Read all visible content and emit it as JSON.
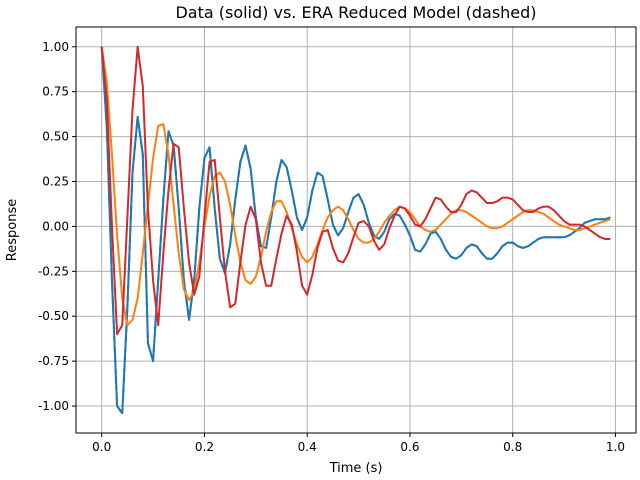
{
  "chart_data": {
    "type": "line",
    "title": "Data (solid) vs. ERA Reduced Model (dashed)",
    "xlabel": "Time (s)",
    "ylabel": "Response",
    "xlim": [
      -0.05,
      1.04
    ],
    "ylim": [
      -1.15,
      1.11
    ],
    "xticks": [
      0.0,
      0.2,
      0.4,
      0.6,
      0.8,
      1.0
    ],
    "yticks": [
      -1.0,
      -0.75,
      -0.5,
      -0.25,
      0.0,
      0.25,
      0.5,
      0.75,
      1.0
    ],
    "grid": true,
    "legend": "none",
    "series": [
      {
        "color": "#1f77b4",
        "x": [
          0.0,
          0.01,
          0.02,
          0.03,
          0.04,
          0.05,
          0.06,
          0.07,
          0.08,
          0.09,
          0.1,
          0.11,
          0.12,
          0.13,
          0.14,
          0.15,
          0.16,
          0.17,
          0.18,
          0.19,
          0.2,
          0.21,
          0.22,
          0.23,
          0.24,
          0.25,
          0.26,
          0.27,
          0.28,
          0.29,
          0.3,
          0.31,
          0.32,
          0.33,
          0.34,
          0.35,
          0.36,
          0.37,
          0.38,
          0.39,
          0.4,
          0.41,
          0.42,
          0.43,
          0.44,
          0.45,
          0.46,
          0.47,
          0.48,
          0.49,
          0.5,
          0.51,
          0.52,
          0.53,
          0.54,
          0.55,
          0.56,
          0.57,
          0.58,
          0.59,
          0.6,
          0.61,
          0.62,
          0.63,
          0.64,
          0.65,
          0.66,
          0.67,
          0.68,
          0.69,
          0.7,
          0.71,
          0.72,
          0.73,
          0.74,
          0.75,
          0.76,
          0.77,
          0.78,
          0.79,
          0.8,
          0.81,
          0.82,
          0.83,
          0.84,
          0.85,
          0.86,
          0.87,
          0.88,
          0.89,
          0.9,
          0.91,
          0.92,
          0.93,
          0.94,
          0.95,
          0.96,
          0.97,
          0.98,
          0.99
        ],
        "y": [
          1.0,
          0.55,
          -0.3,
          -1.0,
          -1.04,
          -0.45,
          0.3,
          0.61,
          0.4,
          -0.65,
          -0.75,
          -0.3,
          0.15,
          0.53,
          0.45,
          0.1,
          -0.3,
          -0.52,
          -0.3,
          0.1,
          0.38,
          0.44,
          0.1,
          -0.18,
          -0.26,
          -0.1,
          0.15,
          0.36,
          0.45,
          0.32,
          0.05,
          -0.11,
          -0.12,
          0.05,
          0.25,
          0.37,
          0.33,
          0.2,
          0.05,
          -0.02,
          0.05,
          0.2,
          0.3,
          0.28,
          0.15,
          0.01,
          -0.05,
          -0.01,
          0.08,
          0.16,
          0.18,
          0.12,
          0.02,
          -0.05,
          -0.07,
          -0.03,
          0.04,
          0.07,
          0.06,
          0.01,
          -0.05,
          -0.13,
          -0.14,
          -0.1,
          -0.04,
          -0.03,
          -0.07,
          -0.13,
          -0.17,
          -0.18,
          -0.16,
          -0.12,
          -0.1,
          -0.11,
          -0.15,
          -0.18,
          -0.18,
          -0.15,
          -0.11,
          -0.09,
          -0.09,
          -0.11,
          -0.12,
          -0.11,
          -0.09,
          -0.07,
          -0.06,
          -0.06,
          -0.06,
          -0.06,
          -0.06,
          -0.05,
          -0.03,
          -0.01,
          0.02,
          0.03,
          0.04,
          0.04,
          0.04,
          0.05
        ]
      },
      {
        "color": "#1f77b4",
        "dashed": true,
        "x": [
          0.0,
          0.01,
          0.02,
          0.03,
          0.04,
          0.05,
          0.06,
          0.07,
          0.08,
          0.09,
          0.1,
          0.11,
          0.12,
          0.13,
          0.14,
          0.15,
          0.16,
          0.17,
          0.18,
          0.19,
          0.2,
          0.21,
          0.22,
          0.23,
          0.24,
          0.25,
          0.26,
          0.27,
          0.28,
          0.29,
          0.3,
          0.31,
          0.32,
          0.33,
          0.34,
          0.35,
          0.36,
          0.37,
          0.38,
          0.39,
          0.4,
          0.41,
          0.42,
          0.43,
          0.44,
          0.45,
          0.46,
          0.47,
          0.48,
          0.49,
          0.5,
          0.51,
          0.52,
          0.53,
          0.54,
          0.55,
          0.56,
          0.57,
          0.58,
          0.59,
          0.6,
          0.61,
          0.62,
          0.63,
          0.64,
          0.65,
          0.66,
          0.67,
          0.68,
          0.69,
          0.7,
          0.71,
          0.72,
          0.73,
          0.74,
          0.75,
          0.76,
          0.77,
          0.78,
          0.79,
          0.8,
          0.81,
          0.82,
          0.83,
          0.84,
          0.85,
          0.86,
          0.87,
          0.88,
          0.89,
          0.9,
          0.91,
          0.92,
          0.93,
          0.94,
          0.95,
          0.96,
          0.97,
          0.98,
          0.99
        ],
        "y": [
          1.0,
          0.55,
          -0.3,
          -1.0,
          -1.04,
          -0.45,
          0.3,
          0.61,
          0.4,
          -0.65,
          -0.75,
          -0.3,
          0.15,
          0.53,
          0.45,
          0.1,
          -0.3,
          -0.52,
          -0.3,
          0.1,
          0.38,
          0.44,
          0.1,
          -0.18,
          -0.26,
          -0.1,
          0.15,
          0.36,
          0.45,
          0.32,
          0.05,
          -0.11,
          -0.12,
          0.05,
          0.25,
          0.37,
          0.33,
          0.2,
          0.05,
          -0.02,
          0.05,
          0.2,
          0.3,
          0.28,
          0.15,
          0.01,
          -0.05,
          -0.01,
          0.08,
          0.16,
          0.18,
          0.12,
          0.02,
          -0.05,
          -0.07,
          -0.03,
          0.04,
          0.07,
          0.06,
          0.01,
          -0.05,
          -0.13,
          -0.14,
          -0.1,
          -0.04,
          -0.03,
          -0.07,
          -0.13,
          -0.17,
          -0.18,
          -0.16,
          -0.12,
          -0.1,
          -0.11,
          -0.15,
          -0.18,
          -0.18,
          -0.15,
          -0.11,
          -0.09,
          -0.09,
          -0.11,
          -0.12,
          -0.11,
          -0.09,
          -0.07,
          -0.06,
          -0.06,
          -0.06,
          -0.06,
          -0.06,
          -0.05,
          -0.03,
          -0.01,
          0.02,
          0.03,
          0.04,
          0.04,
          0.04,
          0.05
        ]
      },
      {
        "color": "#ff7f0e",
        "x": [
          0.0,
          0.01,
          0.02,
          0.03,
          0.04,
          0.05,
          0.06,
          0.07,
          0.08,
          0.09,
          0.1,
          0.11,
          0.12,
          0.13,
          0.14,
          0.15,
          0.16,
          0.17,
          0.18,
          0.19,
          0.2,
          0.21,
          0.22,
          0.23,
          0.24,
          0.25,
          0.26,
          0.27,
          0.28,
          0.29,
          0.3,
          0.31,
          0.32,
          0.33,
          0.34,
          0.35,
          0.36,
          0.37,
          0.38,
          0.39,
          0.4,
          0.41,
          0.42,
          0.43,
          0.44,
          0.45,
          0.46,
          0.47,
          0.48,
          0.49,
          0.5,
          0.51,
          0.52,
          0.53,
          0.54,
          0.55,
          0.56,
          0.57,
          0.58,
          0.59,
          0.6,
          0.61,
          0.62,
          0.63,
          0.64,
          0.65,
          0.66,
          0.67,
          0.68,
          0.69,
          0.7,
          0.71,
          0.72,
          0.73,
          0.74,
          0.75,
          0.76,
          0.77,
          0.78,
          0.79,
          0.8,
          0.81,
          0.82,
          0.83,
          0.84,
          0.85,
          0.86,
          0.87,
          0.88,
          0.89,
          0.9,
          0.91,
          0.92,
          0.93,
          0.94,
          0.95,
          0.96,
          0.97,
          0.98,
          0.99
        ],
        "y": [
          1.0,
          0.8,
          0.4,
          -0.05,
          -0.4,
          -0.55,
          -0.52,
          -0.4,
          -0.15,
          0.12,
          0.38,
          0.56,
          0.57,
          0.4,
          0.12,
          -0.15,
          -0.35,
          -0.41,
          -0.36,
          -0.2,
          0.0,
          0.17,
          0.28,
          0.3,
          0.25,
          0.12,
          -0.05,
          -0.2,
          -0.3,
          -0.32,
          -0.28,
          -0.17,
          -0.03,
          0.08,
          0.14,
          0.14,
          0.08,
          -0.01,
          -0.1,
          -0.17,
          -0.2,
          -0.17,
          -0.1,
          -0.02,
          0.05,
          0.09,
          0.11,
          0.09,
          0.04,
          -0.02,
          -0.07,
          -0.09,
          -0.09,
          -0.07,
          -0.03,
          0.02,
          0.06,
          0.09,
          0.11,
          0.1,
          0.08,
          0.04,
          0.0,
          -0.02,
          -0.03,
          -0.02,
          0.01,
          0.04,
          0.07,
          0.09,
          0.09,
          0.08,
          0.06,
          0.04,
          0.02,
          0.0,
          -0.01,
          -0.01,
          0.0,
          0.02,
          0.04,
          0.06,
          0.08,
          0.09,
          0.09,
          0.08,
          0.07,
          0.05,
          0.03,
          0.01,
          0.0,
          -0.01,
          -0.02,
          -0.02,
          -0.01,
          0.0,
          0.01,
          0.02,
          0.03,
          0.04
        ]
      },
      {
        "color": "#d62728",
        "x": [
          0.0,
          0.01,
          0.02,
          0.03,
          0.04,
          0.05,
          0.06,
          0.07,
          0.08,
          0.09,
          0.1,
          0.11,
          0.12,
          0.13,
          0.14,
          0.15,
          0.16,
          0.17,
          0.18,
          0.19,
          0.2,
          0.21,
          0.22,
          0.23,
          0.24,
          0.25,
          0.26,
          0.27,
          0.28,
          0.29,
          0.3,
          0.31,
          0.32,
          0.33,
          0.34,
          0.35,
          0.36,
          0.37,
          0.38,
          0.39,
          0.4,
          0.41,
          0.42,
          0.43,
          0.44,
          0.45,
          0.46,
          0.47,
          0.48,
          0.49,
          0.5,
          0.51,
          0.52,
          0.53,
          0.54,
          0.55,
          0.56,
          0.57,
          0.58,
          0.59,
          0.6,
          0.61,
          0.62,
          0.63,
          0.64,
          0.65,
          0.66,
          0.67,
          0.68,
          0.69,
          0.7,
          0.71,
          0.72,
          0.73,
          0.74,
          0.75,
          0.76,
          0.77,
          0.78,
          0.79,
          0.8,
          0.81,
          0.82,
          0.83,
          0.84,
          0.85,
          0.86,
          0.87,
          0.88,
          0.89,
          0.9,
          0.91,
          0.92,
          0.93,
          0.94,
          0.95,
          0.96,
          0.97,
          0.98,
          0.99
        ],
        "y": [
          1.0,
          0.7,
          0.0,
          -0.6,
          -0.55,
          0.05,
          0.65,
          1.0,
          0.78,
          0.1,
          -0.3,
          -0.55,
          -0.15,
          0.2,
          0.46,
          0.44,
          0.1,
          -0.2,
          -0.38,
          -0.28,
          0.05,
          0.36,
          0.37,
          0.05,
          -0.25,
          -0.45,
          -0.43,
          -0.2,
          0.01,
          0.11,
          0.04,
          -0.2,
          -0.33,
          -0.33,
          -0.18,
          -0.04,
          0.06,
          0.01,
          -0.14,
          -0.33,
          -0.38,
          -0.27,
          -0.12,
          -0.03,
          -0.02,
          -0.12,
          -0.19,
          -0.2,
          -0.15,
          -0.06,
          0.02,
          0.03,
          0.0,
          -0.08,
          -0.13,
          -0.1,
          -0.01,
          0.06,
          0.11,
          0.1,
          0.06,
          0.01,
          0.0,
          0.04,
          0.1,
          0.16,
          0.15,
          0.11,
          0.08,
          0.08,
          0.12,
          0.18,
          0.2,
          0.19,
          0.16,
          0.13,
          0.13,
          0.14,
          0.16,
          0.16,
          0.15,
          0.12,
          0.09,
          0.08,
          0.08,
          0.1,
          0.11,
          0.11,
          0.09,
          0.06,
          0.03,
          0.01,
          0.01,
          0.01,
          0.0,
          -0.02,
          -0.04,
          -0.06,
          -0.07,
          -0.07
        ]
      }
    ]
  }
}
